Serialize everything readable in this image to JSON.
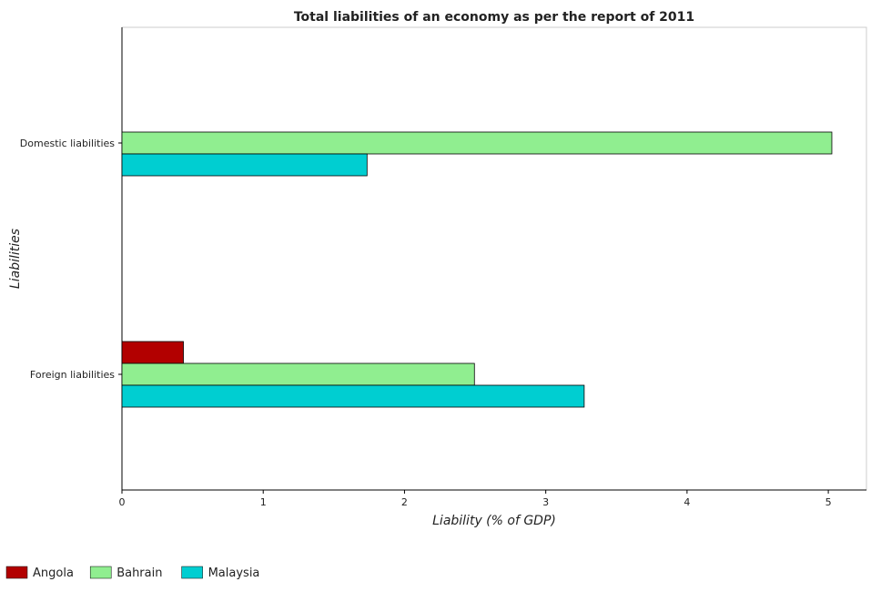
{
  "chart_data": {
    "type": "bar",
    "orientation": "horizontal",
    "title": "Total liabilities of an economy as per the report of 2011",
    "xlabel": "Liability (% of GDP)",
    "ylabel": "Liabilities",
    "categories": [
      "Domestic liabilities",
      "Foreign liabilities"
    ],
    "xlim": [
      0,
      5.27
    ],
    "xticks": [
      0,
      1,
      2,
      3,
      4,
      5
    ],
    "grid": false,
    "legend_position": "bottom-left",
    "series": [
      {
        "name": "Angola",
        "color": "#b20000",
        "values": [
          0,
          0.435
        ]
      },
      {
        "name": "Bahrain",
        "color": "#90ee90",
        "values": [
          5.025,
          2.495
        ]
      },
      {
        "name": "Malaysia",
        "color": "#00ced1",
        "values": [
          1.735,
          3.272
        ]
      }
    ]
  }
}
